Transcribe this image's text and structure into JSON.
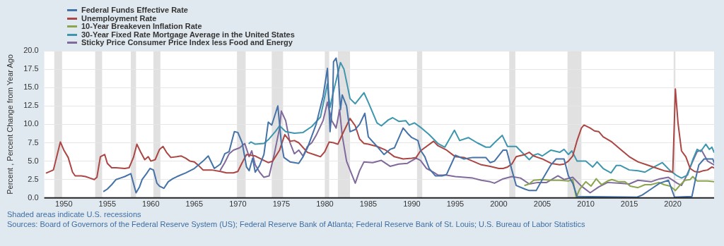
{
  "chart_data": {
    "type": "line",
    "ylabel": "Percent , Percent Change from Year Ago",
    "xlim": [
      1947.75,
      2024.75
    ],
    "xticks": [
      1950,
      1955,
      1960,
      1965,
      1970,
      1975,
      1980,
      1985,
      1990,
      1995,
      2000,
      2005,
      2010,
      2015,
      2020
    ],
    "ylim": [
      0,
      20
    ],
    "yticks": [
      {
        "value": 0,
        "label": "0.0"
      },
      {
        "value": 2.5,
        "label": "2.5"
      },
      {
        "value": 5,
        "label": "5.0"
      },
      {
        "value": 7.5,
        "label": "7.5"
      },
      {
        "value": 10,
        "label": "10.0"
      },
      {
        "value": 12.5,
        "label": "12.5"
      },
      {
        "value": 15,
        "label": "15.0"
      },
      {
        "value": 17.5,
        "label": "17.5"
      },
      {
        "value": 20,
        "label": "20.0"
      }
    ],
    "grid": "y",
    "legend": "top left",
    "marker": "none",
    "line_style": "solid",
    "bands": [
      {
        "axis": "x",
        "from": 1948.9,
        "to": 1949.8,
        "color": "#e1e1e1"
      },
      {
        "axis": "x",
        "from": 1953.6,
        "to": 1954.4,
        "color": "#e1e1e1"
      },
      {
        "axis": "x",
        "from": 1957.7,
        "to": 1958.3,
        "color": "#e1e1e1"
      },
      {
        "axis": "x",
        "from": 1960.3,
        "to": 1961.1,
        "color": "#e1e1e1"
      },
      {
        "axis": "x",
        "from": 1969.9,
        "to": 1970.9,
        "color": "#e1e1e1"
      },
      {
        "axis": "x",
        "from": 1973.9,
        "to": 1975.2,
        "color": "#e1e1e1"
      },
      {
        "axis": "x",
        "from": 1980.0,
        "to": 1980.5,
        "color": "#e1e1e1"
      },
      {
        "axis": "x",
        "from": 1981.5,
        "to": 1982.9,
        "color": "#e1e1e1"
      },
      {
        "axis": "x",
        "from": 1990.6,
        "to": 1991.2,
        "color": "#e1e1e1"
      },
      {
        "axis": "x",
        "from": 2001.2,
        "to": 2001.9,
        "color": "#e1e1e1"
      },
      {
        "axis": "x",
        "from": 2007.9,
        "to": 2009.5,
        "color": "#e1e1e1"
      },
      {
        "axis": "x",
        "from": 2020.1,
        "to": 2020.3,
        "color": "#e1e1e1"
      }
    ],
    "annotations": [
      "Shaded areas indicate U.S. recessions",
      "Sources: Board of Governors of the Federal Reserve System (US); Federal Reserve Bank of Atlanta; Federal Reserve Bank of St. Louis; U.S. Bureau of Labor Statistics"
    ],
    "series": [
      {
        "name": "Federal Funds Effective Rate",
        "color": "#4572a7",
        "x": [
          1954.6,
          1955.0,
          1955.5,
          1956.0,
          1956.5,
          1957.0,
          1957.7,
          1958.0,
          1958.3,
          1958.7,
          1959.0,
          1959.5,
          1959.9,
          1960.3,
          1960.7,
          1961.0,
          1961.5,
          1962.0,
          1962.5,
          1963.0,
          1964.0,
          1965.0,
          1966.0,
          1966.6,
          1967.3,
          1968.0,
          1968.5,
          1969.0,
          1969.6,
          1970.0,
          1970.5,
          1971.0,
          1971.3,
          1971.7,
          1972.0,
          1972.5,
          1973.0,
          1973.5,
          1973.9,
          1974.6,
          1975.0,
          1975.3,
          1976.0,
          1977.0,
          1977.5,
          1978.0,
          1979.0,
          1979.8,
          1980.3,
          1980.6,
          1980.9,
          1981.0,
          1981.3,
          1981.5,
          1981.8,
          1982.0,
          1982.5,
          1982.9,
          1983.5,
          1984.0,
          1984.6,
          1985.0,
          1986.0,
          1986.8,
          1987.5,
          1988.0,
          1989.0,
          1989.5,
          1990.0,
          1990.7,
          1991.0,
          1991.5,
          1992.0,
          1992.7,
          1993.5,
          1994.0,
          1995.0,
          1996.0,
          1997.0,
          1998.5,
          1999.0,
          1999.5,
          2000.5,
          2000.9,
          2001.5,
          2002.0,
          2003.0,
          2003.5,
          2004.3,
          2005.0,
          2006.0,
          2006.6,
          2007.5,
          2008.0,
          2008.5,
          2009.0,
          2015.9,
          2016.5,
          2017.5,
          2018.5,
          2019.5,
          2020.2,
          2022.2,
          2022.6,
          2023.0,
          2023.6,
          2024.6,
          2024.75
        ],
        "values": [
          0.9,
          1.2,
          1.8,
          2.5,
          2.7,
          2.9,
          3.3,
          2.0,
          0.7,
          1.5,
          2.5,
          3.3,
          4.0,
          3.8,
          2.0,
          1.6,
          1.3,
          2.2,
          2.6,
          2.9,
          3.4,
          4.0,
          5.0,
          5.7,
          4.0,
          4.6,
          6.0,
          6.3,
          9.0,
          8.9,
          7.5,
          4.2,
          3.7,
          5.4,
          3.5,
          4.4,
          5.9,
          10.3,
          9.9,
          12.5,
          7.5,
          5.5,
          4.9,
          4.7,
          5.6,
          6.8,
          10.0,
          13.8,
          17.6,
          9.0,
          13.0,
          18.5,
          19.0,
          17.5,
          12.0,
          14.0,
          12.5,
          9.0,
          9.3,
          10.0,
          11.5,
          8.3,
          7.0,
          5.9,
          6.6,
          6.8,
          9.5,
          8.8,
          8.2,
          7.8,
          6.5,
          5.6,
          4.0,
          3.0,
          3.0,
          3.2,
          5.8,
          5.3,
          5.5,
          5.5,
          4.8,
          5.0,
          6.5,
          6.5,
          3.8,
          1.7,
          1.2,
          1.0,
          1.0,
          2.5,
          4.5,
          5.3,
          5.3,
          3.0,
          2.0,
          0.2,
          0.1,
          0.4,
          1.2,
          2.0,
          2.4,
          0.1,
          0.2,
          2.5,
          4.5,
          5.3,
          5.3,
          4.8
        ]
      },
      {
        "name": "Unemployment Rate",
        "color": "#aa4643",
        "x": [
          1948.0,
          1948.8,
          1949.6,
          1950.0,
          1950.5,
          1951.0,
          1951.3,
          1952.0,
          1952.5,
          1953.0,
          1953.5,
          1953.8,
          1954.2,
          1954.7,
          1955.0,
          1955.5,
          1956.0,
          1957.0,
          1957.5,
          1958.0,
          1958.4,
          1958.8,
          1959.3,
          1959.7,
          1960.0,
          1960.5,
          1961.0,
          1961.4,
          1961.8,
          1962.3,
          1963.0,
          1963.5,
          1964.0,
          1964.5,
          1965.0,
          1965.5,
          1966.0,
          1967.0,
          1968.0,
          1968.7,
          1969.5,
          1970.0,
          1970.5,
          1971.0,
          1972.0,
          1973.0,
          1973.5,
          1974.0,
          1974.8,
          1975.4,
          1976.0,
          1976.5,
          1977.0,
          1978.0,
          1979.0,
          1979.5,
          1980.0,
          1980.5,
          1981.0,
          1981.5,
          1982.0,
          1982.9,
          1983.5,
          1984.0,
          1984.5,
          1985.0,
          1986.0,
          1987.0,
          1988.0,
          1989.0,
          1990.0,
          1990.5,
          1991.0,
          1992.5,
          1993.0,
          1994.0,
          1995.0,
          1996.0,
          1997.0,
          1998.0,
          1999.0,
          2000.0,
          2000.5,
          2001.0,
          2001.5,
          2002.0,
          2003.0,
          2003.5,
          2004.0,
          2005.0,
          2006.0,
          2007.0,
          2007.5,
          2008.0,
          2008.5,
          2009.0,
          2009.5,
          2009.8,
          2010.5,
          2011.0,
          2011.5,
          2012.0,
          2013.0,
          2014.0,
          2015.0,
          2016.0,
          2017.0,
          2018.0,
          2019.0,
          2020.0,
          2020.3,
          2020.6,
          2021.0,
          2021.5,
          2022.0,
          2022.5,
          2023.0,
          2023.5,
          2024.0,
          2024.5,
          2024.75
        ],
        "values": [
          3.4,
          3.8,
          7.6,
          6.5,
          5.5,
          3.5,
          3.0,
          3.0,
          2.9,
          2.7,
          2.5,
          2.8,
          5.6,
          5.9,
          4.7,
          4.1,
          4.1,
          4.0,
          4.1,
          5.5,
          7.3,
          6.3,
          5.2,
          5.6,
          5.0,
          5.2,
          6.6,
          7.0,
          6.2,
          5.5,
          5.6,
          5.7,
          5.4,
          5.0,
          4.9,
          4.4,
          3.8,
          3.8,
          3.6,
          3.4,
          3.4,
          3.6,
          4.8,
          5.9,
          5.7,
          5.1,
          4.8,
          5.0,
          6.5,
          8.6,
          7.7,
          7.8,
          7.5,
          6.2,
          5.8,
          5.6,
          6.3,
          7.6,
          7.5,
          7.3,
          8.6,
          10.8,
          9.8,
          8.0,
          7.4,
          7.3,
          7.0,
          6.5,
          5.6,
          5.3,
          5.4,
          5.5,
          6.4,
          7.7,
          7.1,
          6.5,
          5.6,
          5.5,
          5.0,
          4.5,
          4.3,
          4.0,
          4.0,
          4.2,
          4.6,
          5.6,
          5.9,
          6.2,
          5.7,
          5.3,
          4.7,
          4.5,
          4.6,
          5.0,
          5.7,
          7.8,
          9.5,
          9.9,
          9.5,
          9.1,
          9.0,
          8.3,
          7.6,
          6.6,
          5.6,
          4.9,
          4.5,
          4.1,
          3.7,
          3.5,
          14.8,
          10.2,
          6.4,
          5.6,
          4.0,
          3.6,
          3.5,
          3.7,
          3.8,
          4.2,
          4.1
        ]
      },
      {
        "name": "10-Year Breakeven Inflation Rate",
        "color": "#89a54e",
        "x": [
          2003.0,
          2003.5,
          2004.0,
          2005.0,
          2006.0,
          2007.0,
          2008.0,
          2008.5,
          2008.9,
          2009.3,
          2010.0,
          2010.6,
          2011.2,
          2011.8,
          2012.5,
          2013.0,
          2013.8,
          2014.5,
          2015.1,
          2016.0,
          2016.8,
          2017.5,
          2018.4,
          2019.0,
          2019.7,
          2020.3,
          2020.8,
          2021.4,
          2022.0,
          2022.3,
          2022.8,
          2023.4,
          2024.0,
          2024.75
        ],
        "values": [
          1.7,
          1.9,
          2.4,
          2.5,
          2.4,
          2.4,
          2.3,
          2.5,
          0.1,
          1.2,
          2.2,
          1.6,
          2.6,
          1.8,
          2.3,
          2.5,
          2.2,
          2.2,
          1.6,
          1.4,
          1.8,
          1.8,
          2.1,
          1.8,
          1.6,
          1.0,
          1.7,
          2.4,
          2.5,
          2.9,
          2.3,
          2.3,
          2.3,
          2.2
        ]
      },
      {
        "name": "30-Year Fixed Rate Mortgage Average in the United States",
        "color": "#3d96ae",
        "x": [
          1971.3,
          1971.5,
          1972.0,
          1973.0,
          1973.5,
          1974.3,
          1974.8,
          1975.5,
          1976.5,
          1977.5,
          1978.5,
          1979.5,
          1980.3,
          1980.6,
          1981.0,
          1981.8,
          1982.2,
          1982.9,
          1983.5,
          1984.5,
          1985.0,
          1986.0,
          1986.5,
          1987.3,
          1987.8,
          1988.5,
          1989.3,
          1989.7,
          1990.3,
          1991.0,
          1992.0,
          1993.0,
          1993.8,
          1994.9,
          1995.5,
          1996.5,
          1997.5,
          1998.5,
          1999.0,
          1999.5,
          2000.4,
          2001.0,
          2002.0,
          2003.0,
          2003.5,
          2004.0,
          2004.5,
          2005.0,
          2006.0,
          2007.0,
          2007.5,
          2008.0,
          2008.4,
          2009.0,
          2010.0,
          2010.8,
          2011.3,
          2012.0,
          2012.9,
          2013.5,
          2014.0,
          2015.0,
          2016.0,
          2016.8,
          2017.5,
          2018.8,
          2019.7,
          2020.5,
          2021.0,
          2021.7,
          2022.3,
          2022.8,
          2023.2,
          2023.8,
          2024.2,
          2024.5,
          2024.75
        ],
        "values": [
          7.4,
          7.6,
          7.3,
          7.4,
          7.9,
          9.0,
          9.8,
          9.0,
          8.8,
          8.9,
          9.7,
          11.0,
          15.5,
          12.3,
          14.5,
          18.4,
          17.5,
          13.5,
          12.8,
          14.3,
          13.0,
          10.2,
          9.8,
          10.6,
          10.9,
          10.4,
          10.5,
          9.9,
          10.2,
          9.6,
          8.6,
          7.4,
          6.9,
          9.2,
          7.8,
          8.2,
          7.5,
          6.9,
          6.9,
          7.5,
          8.5,
          7.0,
          7.0,
          5.8,
          5.2,
          5.8,
          6.0,
          5.7,
          6.5,
          6.2,
          6.6,
          5.9,
          6.4,
          5.0,
          5.0,
          4.2,
          4.9,
          4.0,
          3.4,
          4.4,
          4.4,
          3.8,
          3.7,
          3.5,
          4.0,
          4.8,
          3.7,
          3.0,
          2.7,
          3.1,
          5.2,
          6.6,
          6.3,
          7.3,
          6.6,
          6.9,
          6.2
        ]
      },
      {
        "name": "Sticky Price Consumer Price Index less Food and Energy",
        "color": "#80699b",
        "x": [
          1968.0,
          1968.5,
          1969.0,
          1969.5,
          1970.2,
          1970.8,
          1971.3,
          1971.6,
          1972.0,
          1972.5,
          1973.0,
          1973.6,
          1974.2,
          1974.8,
          1975.0,
          1975.5,
          1976.0,
          1976.5,
          1977.0,
          1977.5,
          1978.0,
          1978.5,
          1979.0,
          1979.8,
          1980.3,
          1980.8,
          1981.3,
          1981.7,
          1982.0,
          1982.5,
          1983.0,
          1983.5,
          1984.0,
          1984.5,
          1985.5,
          1986.5,
          1987.5,
          1988.5,
          1989.5,
          1990.5,
          1991.0,
          1991.7,
          1992.5,
          1993.0,
          1994.0,
          1995.0,
          1996.0,
          1997.0,
          1998.0,
          1999.0,
          1999.5,
          2000.5,
          2001.5,
          2002.5,
          2003.5,
          2004.5,
          2005.5,
          2006.8,
          2007.5,
          2008.5,
          2009.5,
          2010.5,
          2011.5,
          2012.5,
          2014.0,
          2015.0,
          2016.0,
          2017.5,
          2018.5,
          2019.5,
          2020.5,
          2021.0,
          2021.5,
          2022.3,
          2022.8,
          2023.3,
          2024.0,
          2024.75
        ],
        "values": [
          3.8,
          4.8,
          6.0,
          6.5,
          6.8,
          7.4,
          5.6,
          6.4,
          4.5,
          3.5,
          2.8,
          3.0,
          6.0,
          9.5,
          11.8,
          10.5,
          7.5,
          6.0,
          6.5,
          5.7,
          7.0,
          7.5,
          8.5,
          10.5,
          13.0,
          10.5,
          9.5,
          12.0,
          8.5,
          5.0,
          3.5,
          2.0,
          3.7,
          4.9,
          4.8,
          5.1,
          4.3,
          4.6,
          4.7,
          5.4,
          5.1,
          4.0,
          3.5,
          3.1,
          3.1,
          2.9,
          2.8,
          2.7,
          2.4,
          2.2,
          2.0,
          2.6,
          2.9,
          2.7,
          1.9,
          2.1,
          2.1,
          3.0,
          2.5,
          2.8,
          1.6,
          0.7,
          1.5,
          2.1,
          2.0,
          1.9,
          2.4,
          2.2,
          2.6,
          2.8,
          2.0,
          1.7,
          2.8,
          5.0,
          6.3,
          6.5,
          5.0,
          4.5
        ]
      }
    ]
  }
}
